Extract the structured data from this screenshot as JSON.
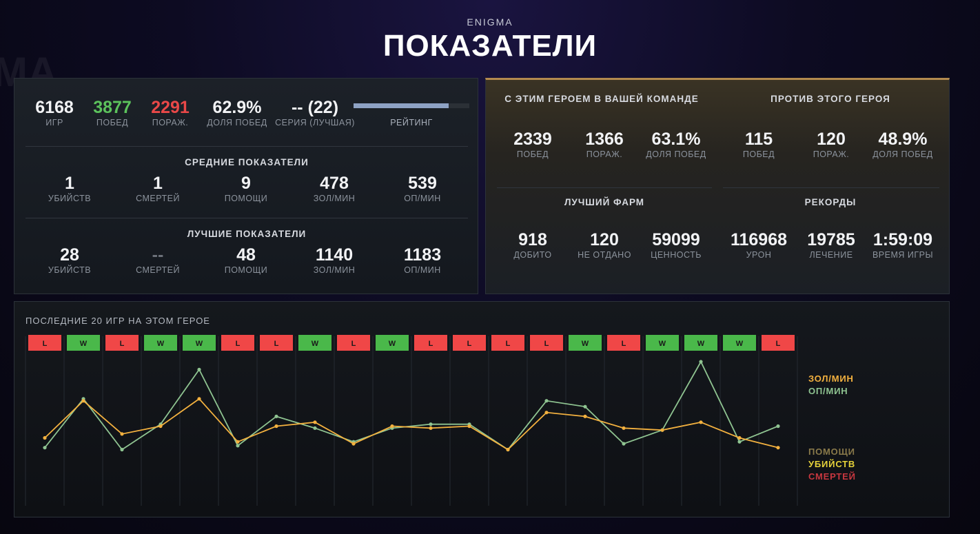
{
  "header": {
    "hero": "ENIGMA",
    "title": "ПОКАЗАТЕЛИ"
  },
  "colors": {
    "win": "#4ab84a",
    "loss": "#f04747",
    "gpm": "#f3b13f",
    "xpm": "#8fc491",
    "assists": "#8a7a4a",
    "kills": "#e6d23a",
    "deaths": "#c7373f",
    "accent": "#b38a4e"
  },
  "summary": {
    "games": {
      "value": "6168",
      "label": "ИГР"
    },
    "wins": {
      "value": "3877",
      "label": "ПОБЕД"
    },
    "losses": {
      "value": "2291",
      "label": "ПОРАЖ."
    },
    "winrate": {
      "value": "62.9%",
      "label": "ДОЛЯ ПОБЕД"
    },
    "streak": {
      "value": "-- (22)",
      "label": "СЕРИЯ (ЛУЧШАЯ)"
    },
    "rating": {
      "label": "РЕЙТИНГ",
      "fill": 0.82
    }
  },
  "averages": {
    "title": "СРЕДНИЕ ПОКАЗАТЕЛИ",
    "items": [
      {
        "value": "1",
        "label": "УБИЙСТВ"
      },
      {
        "value": "1",
        "label": "СМЕРТЕЙ"
      },
      {
        "value": "9",
        "label": "ПОМОЩИ"
      },
      {
        "value": "478",
        "label": "ЗОЛ/МИН"
      },
      {
        "value": "539",
        "label": "ОП/МИН"
      }
    ]
  },
  "bests": {
    "title": "ЛУЧШИЕ ПОКАЗАТЕЛИ",
    "items": [
      {
        "value": "28",
        "label": "УБИЙСТВ"
      },
      {
        "value": "--",
        "label": "СМЕРТЕЙ"
      },
      {
        "value": "48",
        "label": "ПОМОЩИ"
      },
      {
        "value": "1140",
        "label": "ЗОЛ/МИН"
      },
      {
        "value": "1183",
        "label": "ОП/МИН"
      }
    ]
  },
  "with_hero": {
    "title": "С ЭТИМ ГЕРОЕМ В ВАШЕЙ КОМАНДЕ",
    "items": [
      {
        "value": "2339",
        "label": "ПОБЕД"
      },
      {
        "value": "1366",
        "label": "ПОРАЖ."
      },
      {
        "value": "63.1%",
        "label": "ДОЛЯ ПОБЕД"
      }
    ]
  },
  "against_hero": {
    "title": "ПРОТИВ ЭТОГО ГЕРОЯ",
    "items": [
      {
        "value": "115",
        "label": "ПОБЕД"
      },
      {
        "value": "120",
        "label": "ПОРАЖ."
      },
      {
        "value": "48.9%",
        "label": "ДОЛЯ ПОБЕД"
      }
    ]
  },
  "best_farm": {
    "title": "ЛУЧШИЙ ФАРМ",
    "items": [
      {
        "value": "918",
        "label": "ДОБИТО"
      },
      {
        "value": "120",
        "label": "НЕ ОТДАНО"
      },
      {
        "value": "59099",
        "label": "ЦЕННОСТЬ"
      }
    ]
  },
  "records": {
    "title": "РЕКОРДЫ",
    "items": [
      {
        "value": "116968",
        "label": "УРОН"
      },
      {
        "value": "19785",
        "label": "ЛЕЧЕНИЕ"
      },
      {
        "value": "1:59:09",
        "label": "ВРЕМЯ ИГРЫ"
      }
    ]
  },
  "recent": {
    "title": "ПОСЛЕДНИЕ 20 ИГР НА ЭТОМ ГЕРОЕ",
    "legend": {
      "gpm": "ЗОЛ/МИН",
      "xpm": "ОП/МИН",
      "assists": "ПОМОЩИ",
      "kills": "УБИЙСТВ",
      "deaths": "СМЕРТЕЙ"
    }
  },
  "chart_data": {
    "type": "line",
    "x": [
      1,
      2,
      3,
      4,
      5,
      6,
      7,
      8,
      9,
      10,
      11,
      12,
      13,
      14,
      15,
      16,
      17,
      18,
      19,
      20
    ],
    "results": [
      "L",
      "W",
      "L",
      "W",
      "W",
      "L",
      "L",
      "W",
      "L",
      "W",
      "L",
      "L",
      "L",
      "L",
      "W",
      "L",
      "W",
      "W",
      "W",
      "L"
    ],
    "series": [
      {
        "name": "ЗОЛ/МИН",
        "values": [
          450,
          640,
          470,
          510,
          650,
          430,
          510,
          530,
          420,
          510,
          500,
          510,
          390,
          580,
          560,
          500,
          490,
          530,
          450,
          400
        ]
      },
      {
        "name": "ОП/МИН",
        "values": [
          400,
          650,
          390,
          520,
          800,
          410,
          560,
          500,
          430,
          500,
          520,
          520,
          390,
          640,
          610,
          420,
          490,
          840,
          430,
          510
        ]
      }
    ]
  }
}
